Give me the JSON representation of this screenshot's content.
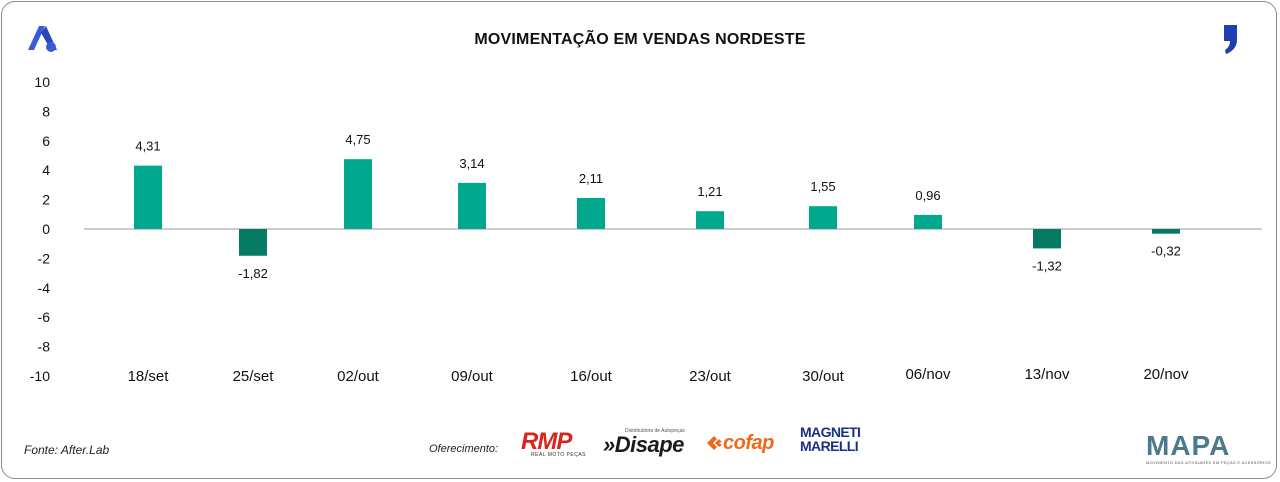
{
  "header": {
    "title": "MOVIMENTAÇÃO EM VENDAS NORDESTE"
  },
  "colors": {
    "positive_bar": "#00a88d",
    "negative_bar": "#077a64",
    "axis_text": "#111111",
    "zero_line": "#9a9a9a"
  },
  "chart_data": {
    "type": "bar",
    "title": "MOVIMENTAÇÃO EM VENDAS NORDESTE",
    "xlabel": "",
    "ylabel": "",
    "ylim": [
      -10,
      10
    ],
    "yticks": [
      10,
      8,
      6,
      4,
      2,
      0,
      -2,
      -4,
      -6,
      -8,
      -10
    ],
    "grid": false,
    "categories": [
      "18/set",
      "25/set",
      "02/out",
      "09/out",
      "16/out",
      "23/out",
      "30/out",
      "06/nov",
      "13/nov",
      "20/nov"
    ],
    "values": [
      4.31,
      -1.82,
      4.75,
      3.14,
      2.11,
      1.21,
      1.55,
      0.96,
      -1.32,
      -0.32
    ],
    "value_labels": [
      "4,31",
      "-1,82",
      "4,75",
      "3,14",
      "2,11",
      "1,21",
      "1,55",
      "0,96",
      "-1,32",
      "-0,32"
    ]
  },
  "footer": {
    "source": "Fonte: After.Lab",
    "offered_by_label": "Oferecimento:",
    "sponsors": {
      "rmp": "RMP",
      "rmp_tagline": "REAL MOTO PEÇAS",
      "disape": "»Disape",
      "disape_tagline": "Distribuidora de Autopeças",
      "cofap": "cofap",
      "magneti": "MAGNETI\nMARELLI",
      "mapa": "MAPA",
      "mapa_tagline": "MOVIMENTO DAS ATIVIDADES EM PEÇAS E ACESSÓRIOS"
    }
  },
  "icons": {
    "brand_logo": "a-logo-icon",
    "quote_logo": "quote-logo-icon"
  }
}
